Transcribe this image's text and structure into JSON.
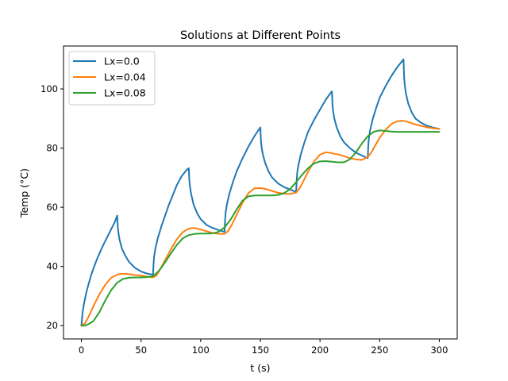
{
  "chart_data": {
    "type": "line",
    "title": "Solutions at Different Points",
    "xlabel": "t (s)",
    "ylabel": "Temp (°C)",
    "xlim": [
      -15,
      315
    ],
    "ylim": [
      15.5,
      114.5
    ],
    "xticks": [
      0,
      50,
      100,
      150,
      200,
      250,
      300
    ],
    "yticks": [
      20,
      40,
      60,
      80,
      100
    ],
    "grid": false,
    "legend": "top-left",
    "series": [
      {
        "name": "Lx=0.0",
        "color": "#1f77b4",
        "x": [
          0,
          1,
          2,
          4,
          6,
          8,
          10,
          13,
          16,
          19,
          22,
          25,
          28,
          30,
          30.5,
          31,
          32,
          34,
          37,
          40,
          45,
          50,
          55,
          60,
          60.5,
          61,
          62,
          64,
          67,
          70,
          73,
          76,
          80,
          84,
          88,
          90,
          90.5,
          91,
          92,
          94,
          97,
          100,
          105,
          110,
          115,
          120,
          120.5,
          121,
          122,
          124,
          127,
          130,
          135,
          140,
          145,
          150,
          150.5,
          151,
          152,
          154,
          157,
          160,
          165,
          170,
          175,
          180,
          180.5,
          181,
          182,
          184,
          187,
          190,
          195,
          200,
          205,
          210,
          210.5,
          211,
          212,
          214,
          217,
          220,
          225,
          230,
          235,
          240,
          240.5,
          241,
          242,
          244,
          247,
          250,
          255,
          260,
          265,
          270,
          270.5,
          271,
          272,
          274,
          277,
          280,
          285,
          290,
          295,
          300
        ],
        "y": [
          20,
          24.5,
          27,
          31,
          34,
          36.8,
          39.2,
          42.4,
          45.2,
          47.8,
          50.2,
          52.6,
          55,
          57.2,
          53.5,
          51.5,
          49,
          46,
          43.5,
          41.5,
          39.5,
          38.3,
          37.6,
          37.2,
          41,
          43.5,
          46,
          49.5,
          53.5,
          57,
          60.5,
          63.5,
          67.5,
          70.5,
          72.5,
          73.2,
          69,
          67,
          64.5,
          61,
          58,
          56,
          54,
          53,
          52.3,
          51.7,
          56,
          58.5,
          61,
          64.5,
          68.5,
          72,
          76.5,
          80.5,
          84,
          87,
          82.5,
          80.5,
          78,
          75,
          72,
          70,
          68,
          66.8,
          66,
          65.2,
          69.5,
          72,
          74.5,
          78,
          82,
          85.5,
          89.5,
          93,
          96.5,
          99.2,
          94.5,
          92.5,
          90,
          87,
          84,
          82,
          80,
          78.5,
          77.5,
          76.6,
          81,
          83.5,
          86,
          89.5,
          93.5,
          97,
          101,
          104.5,
          107.5,
          110,
          104,
          101.5,
          98.5,
          95,
          92,
          90,
          88.5,
          87.5,
          86.9,
          86.5
        ]
      },
      {
        "name": "Lx=0.04",
        "color": "#ff7f0e",
        "x": [
          0,
          3,
          6,
          10,
          15,
          20,
          25,
          30,
          33,
          36,
          40,
          45,
          50,
          55,
          60,
          63,
          66,
          70,
          75,
          80,
          85,
          90,
          93,
          96,
          100,
          105,
          110,
          115,
          120,
          123,
          126,
          130,
          135,
          140,
          145,
          150,
          153,
          156,
          160,
          165,
          170,
          175,
          180,
          183,
          186,
          190,
          195,
          200,
          205,
          210,
          213,
          216,
          220,
          225,
          230,
          235,
          240,
          243,
          246,
          250,
          255,
          260,
          265,
          270,
          273,
          276,
          280,
          285,
          290,
          295,
          300
        ],
        "y": [
          20,
          20.8,
          23,
          26.5,
          30.5,
          33.8,
          36.2,
          37.2,
          37.5,
          37.5,
          37.4,
          37.1,
          36.9,
          36.6,
          36.3,
          37,
          39,
          42,
          45.8,
          49.2,
          51.6,
          52.8,
          53,
          52.9,
          52.5,
          51.9,
          51.3,
          51,
          51,
          52,
          54,
          57.4,
          61.5,
          64.8,
          66.4,
          66.5,
          66.3,
          66,
          65.5,
          64.9,
          64.6,
          64.5,
          65,
          66.5,
          68.8,
          72,
          75.5,
          77.8,
          78.6,
          78.3,
          78,
          77.8,
          77.3,
          76.6,
          76.2,
          76,
          77,
          78.5,
          80.7,
          83.5,
          86.2,
          88.2,
          89.1,
          89.2,
          89,
          88.5,
          88,
          87.5,
          87,
          86.7,
          86.5
        ]
      },
      {
        "name": "Lx=0.08",
        "color": "#2ca02c",
        "x": [
          0,
          3,
          6,
          10,
          15,
          20,
          25,
          30,
          35,
          40,
          45,
          50,
          55,
          60,
          65,
          70,
          75,
          80,
          85,
          90,
          95,
          100,
          105,
          110,
          115,
          120,
          125,
          130,
          135,
          140,
          145,
          150,
          155,
          160,
          165,
          170,
          175,
          180,
          185,
          190,
          195,
          200,
          205,
          210,
          215,
          220,
          225,
          230,
          235,
          240,
          245,
          250,
          255,
          260,
          265,
          270,
          275,
          280,
          285,
          290,
          295,
          300
        ],
        "y": [
          20,
          20,
          20.5,
          21.5,
          24.5,
          28.5,
          32,
          34.5,
          35.8,
          36.2,
          36.3,
          36.3,
          36.4,
          36.7,
          38.5,
          41.3,
          44.4,
          47.3,
          49.5,
          50.6,
          51,
          51.1,
          51.1,
          51.2,
          51.7,
          53.2,
          55.8,
          59.2,
          62.2,
          63.7,
          64,
          64,
          64,
          64,
          64.2,
          64.8,
          66.2,
          68.5,
          71,
          73.2,
          74.8,
          75.5,
          75.6,
          75.4,
          75.2,
          75.2,
          76.2,
          78.5,
          81.5,
          84,
          85.5,
          86,
          85.8,
          85.6,
          85.5,
          85.5,
          85.5,
          85.5,
          85.5,
          85.5,
          85.5,
          85.5
        ]
      }
    ]
  }
}
